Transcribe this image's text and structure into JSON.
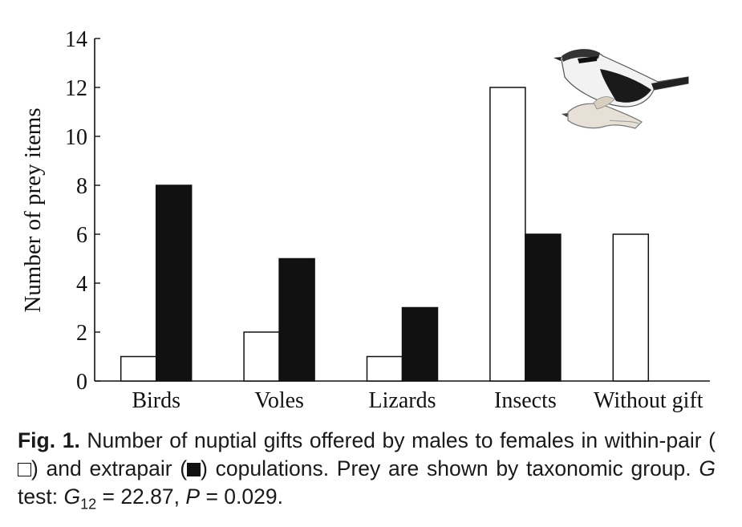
{
  "chart_data": {
    "type": "bar",
    "categories": [
      "Birds",
      "Voles",
      "Lizards",
      "Insects",
      "Without gift"
    ],
    "series": [
      {
        "name": "within-pair",
        "color": "#ffffff",
        "values": [
          1,
          2,
          1,
          12,
          6
        ]
      },
      {
        "name": "extrapair",
        "color": "#111111",
        "values": [
          8,
          5,
          3,
          6,
          0
        ]
      }
    ],
    "ylabel": "Number of prey items",
    "xlabel": "",
    "ylim": [
      0,
      14
    ],
    "yticks": [
      "0",
      "2",
      "4",
      "6",
      "8",
      "10",
      "12",
      "14"
    ],
    "grid": false,
    "legend": "none"
  },
  "caption": {
    "label": "Fig. 1.",
    "text_1": "Number of nuptial gifts offered by males to females in within-pair (",
    "text_2": ") and extrapair (",
    "text_3": ") copulations. Prey are shown by taxonomic group.",
    "g_italic": "G",
    "test_word": "test:",
    "g12": "G",
    "g12_sub": "12",
    "stat": "= 22.87,",
    "p_italic": "P",
    "p_value": "= 0.029."
  },
  "illustration": {
    "icon": "shrike-bird-illustration"
  }
}
